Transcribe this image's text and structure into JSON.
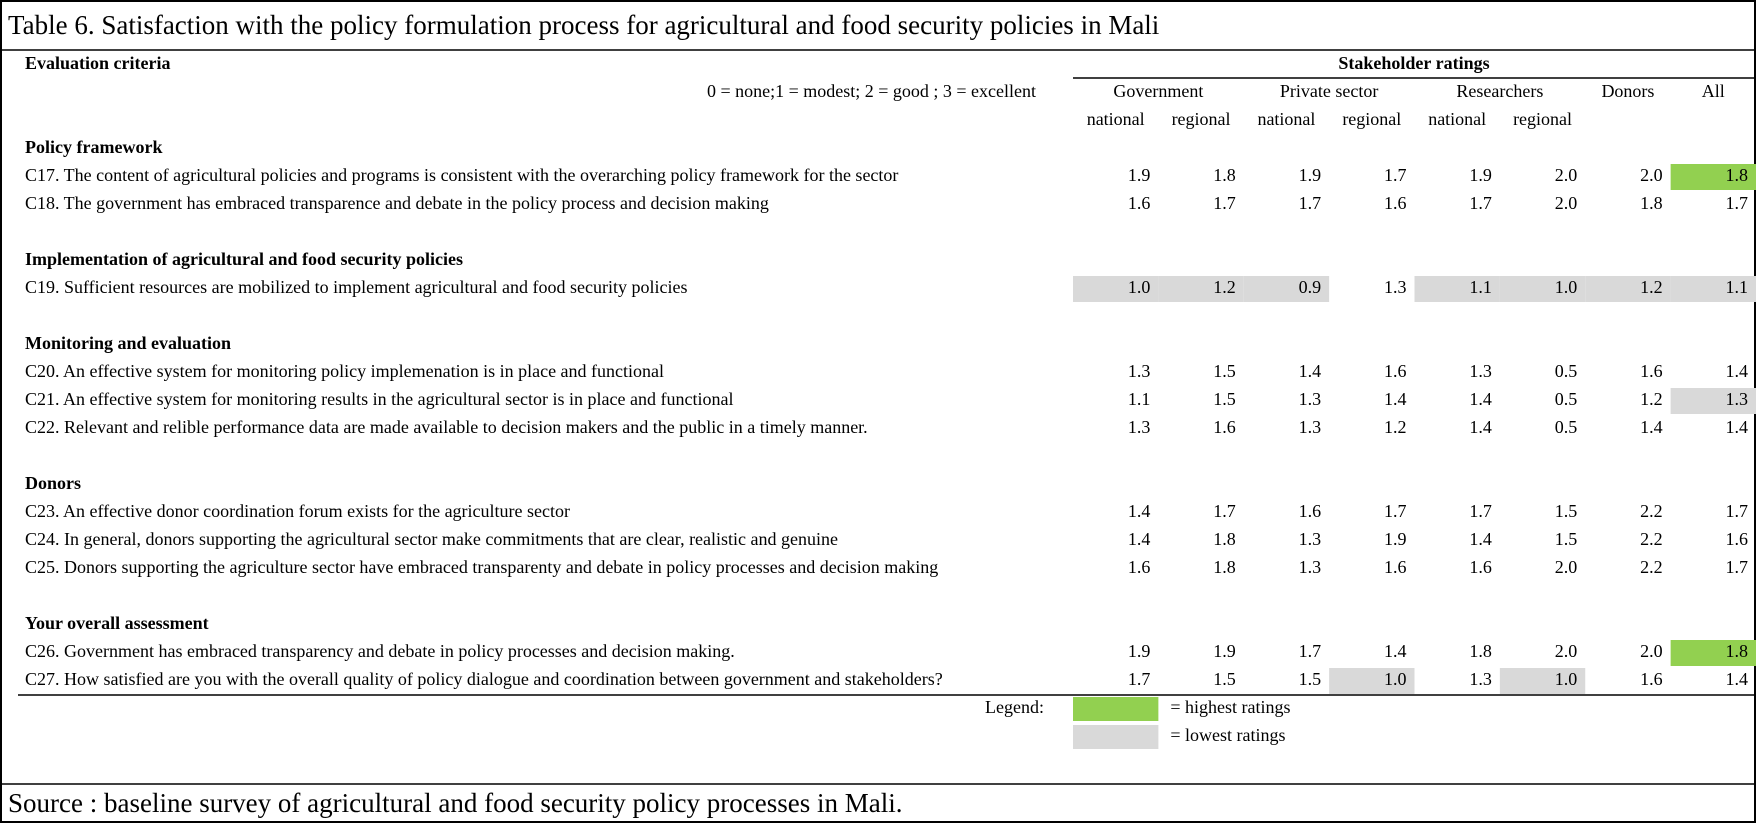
{
  "title": "Table 6. Satisfaction with the policy formulation process for agricultural and food security policies in Mali",
  "header": {
    "criteria_label": "Evaluation criteria",
    "scale_note": "0 = none;1 = modest; 2 = good ; 3 = excellent",
    "group_title": "Stakeholder ratings",
    "groups": [
      {
        "name": "Government",
        "subs": [
          "national",
          "regional"
        ]
      },
      {
        "name": "Private sector",
        "subs": [
          "national",
          "regional"
        ]
      },
      {
        "name": "Researchers",
        "subs": [
          "national",
          "regional"
        ]
      },
      {
        "name": "Donors"
      },
      {
        "name": "All"
      }
    ]
  },
  "sections": [
    {
      "title": "Policy framework",
      "rows": [
        {
          "label": "C17. The content of agricultural policies and programs is consistent with the overarching policy framework for the sector",
          "ratings": [
            "1.9",
            "1.8",
            "1.9",
            "1.7",
            "1.9",
            "2.0",
            "2.0",
            "1.8"
          ],
          "colors": [
            null,
            null,
            null,
            null,
            null,
            null,
            null,
            "#92d050"
          ]
        },
        {
          "label": "C18. The government has embraced transparence and debate in the policy process and decision making",
          "ratings": [
            "1.6",
            "1.7",
            "1.7",
            "1.6",
            "1.7",
            "2.0",
            "1.8",
            "1.7"
          ]
        }
      ]
    },
    {
      "title": "Implementation of agricultural and food security policies",
      "rows": [
        {
          "label": "C19. Sufficient resources are mobilized to implement agricultural and food security policies",
          "ratings": [
            "1.0",
            "1.2",
            "0.9",
            "1.3",
            "1.1",
            "1.0",
            "1.2",
            "1.1"
          ],
          "colors": [
            "#d9d9d9",
            "#d9d9d9",
            "#d9d9d9",
            null,
            "#d9d9d9",
            "#d9d9d9",
            "#d9d9d9",
            "#d9d9d9"
          ]
        }
      ]
    },
    {
      "title": "Monitoring and evaluation",
      "rows": [
        {
          "label": "C20. An effective system for monitoring policy implemenation is in place and functional",
          "ratings": [
            "1.3",
            "1.5",
            "1.4",
            "1.6",
            "1.3",
            "0.5",
            "1.6",
            "1.4"
          ]
        },
        {
          "label": "C21. An effective system for monitoring results in the agricultural sector is in place and functional",
          "ratings": [
            "1.1",
            "1.5",
            "1.3",
            "1.4",
            "1.4",
            "0.5",
            "1.2",
            "1.3"
          ],
          "colors": [
            null,
            null,
            null,
            null,
            null,
            null,
            null,
            "#d9d9d9"
          ]
        },
        {
          "label": "C22. Relevant and relible performance data are made available to decision makers and the public in a timely manner.",
          "ratings": [
            "1.3",
            "1.6",
            "1.3",
            "1.2",
            "1.4",
            "0.5",
            "1.4",
            "1.4"
          ]
        }
      ]
    },
    {
      "title": "Donors",
      "rows": [
        {
          "label": "C23. An effective donor coordination forum exists for the agriculture sector",
          "ratings": [
            "1.4",
            "1.7",
            "1.6",
            "1.7",
            "1.7",
            "1.5",
            "2.2",
            "1.7"
          ]
        },
        {
          "label": "C24.  In general, donors supporting the agricultural sector make commitments that are clear, realistic and genuine",
          "ratings": [
            "1.4",
            "1.8",
            "1.3",
            "1.9",
            "1.4",
            "1.5",
            "2.2",
            "1.6"
          ]
        },
        {
          "label": "C25. Donors supporting the agriculture sector have embraced transparenty and debate in policy processes and decision making",
          "ratings": [
            "1.6",
            "1.8",
            "1.3",
            "1.6",
            "1.6",
            "2.0",
            "2.2",
            "1.7"
          ]
        }
      ]
    },
    {
      "title": "Your overall assessment",
      "rows": [
        {
          "label": "C26. Government has embraced transparency and debate in policy processes and decision making.",
          "ratings": [
            "1.9",
            "1.9",
            "1.7",
            "1.4",
            "1.8",
            "2.0",
            "2.0",
            "1.8"
          ],
          "colors": [
            null,
            null,
            null,
            null,
            null,
            null,
            null,
            "#92d050"
          ]
        },
        {
          "label": "C27. How satisfied are you with the overall quality of policy dialogue and coordination between government and stakeholders?",
          "ratings": [
            "1.7",
            "1.5",
            "1.5",
            "1.0",
            "1.3",
            "1.0",
            "1.6",
            "1.4"
          ],
          "colors": [
            null,
            null,
            null,
            "#d9d9d9",
            null,
            "#d9d9d9",
            null,
            null
          ]
        }
      ]
    }
  ],
  "legend": {
    "label": "Legend:",
    "items": [
      {
        "color": "#92d050",
        "text": "= highest ratings"
      },
      {
        "color": "#d9d9d9",
        "text": "= lowest ratings"
      }
    ]
  },
  "source": "Source : baseline survey of agricultural and food security policy processes in Mali."
}
